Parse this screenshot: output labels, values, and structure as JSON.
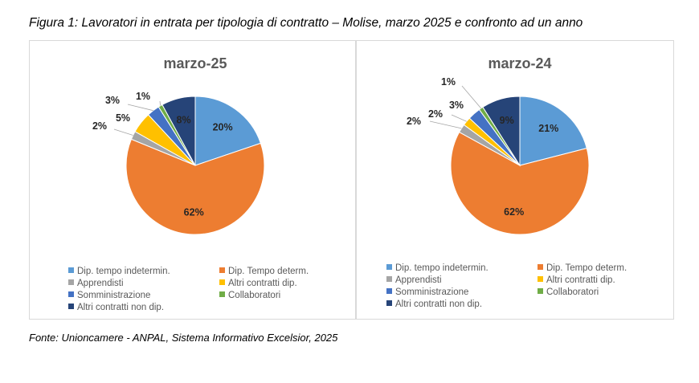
{
  "figure": {
    "title": "Figura 1: Lavoratori in entrata per tipologia di contratto – Molise, marzo 2025 e confronto ad un anno",
    "source": "Fonte: Unioncamere - ANPAL, Sistema Informativo Excelsior, 2025"
  },
  "chart_data": [
    {
      "type": "pie",
      "title": "marzo-25",
      "categories": [
        "Dip. tempo indetermin.",
        "Dip. Tempo determ.",
        "Apprendisti",
        "Altri contratti dip.",
        "Somministrazione",
        "Collaboratori",
        "Altri contratti non dip."
      ],
      "values": [
        20,
        62,
        2,
        5,
        3,
        1,
        8
      ],
      "labels": [
        "20%",
        "62%",
        "2%",
        "5%",
        "3%",
        "1%",
        "8%"
      ],
      "colors": [
        "#5b9bd5",
        "#ed7d31",
        "#a5a5a5",
        "#ffc000",
        "#4472c4",
        "#70ad47",
        "#264478"
      ],
      "legend_position": "bottom"
    },
    {
      "type": "pie",
      "title": "marzo-24",
      "categories": [
        "Dip. tempo indetermin.",
        "Dip. Tempo determ.",
        "Apprendisti",
        "Altri contratti dip.",
        "Somministrazione",
        "Collaboratori",
        "Altri contratti non dip."
      ],
      "values": [
        21,
        62,
        2,
        2,
        3,
        1,
        9
      ],
      "labels": [
        "21%",
        "62%",
        "2%",
        "2%",
        "3%",
        "1%",
        "9%"
      ],
      "colors": [
        "#5b9bd5",
        "#ed7d31",
        "#a5a5a5",
        "#ffc000",
        "#4472c4",
        "#70ad47",
        "#264478"
      ],
      "legend_position": "bottom"
    }
  ]
}
